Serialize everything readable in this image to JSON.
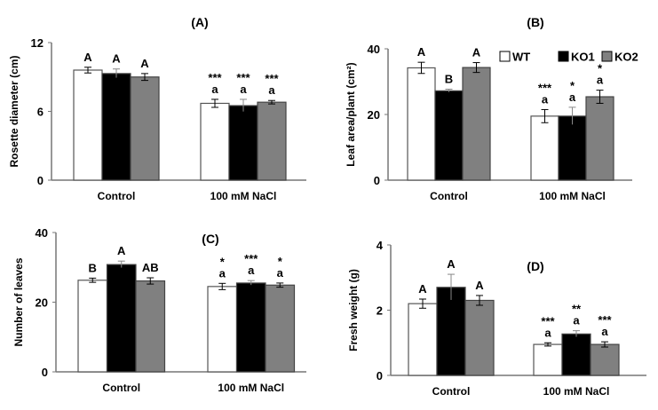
{
  "legend": [
    "WT",
    "KO1",
    "KO2"
  ],
  "series_colors": {
    "WT": "#ffffff",
    "KO1": "#000000",
    "KO2": "#808080"
  },
  "chart_data": [
    {
      "type": "bar",
      "title": "(A)",
      "ylabel": "Rosette diameter (cm)",
      "ylim": [
        0,
        12
      ],
      "yticks": [
        "0",
        "6",
        "12"
      ],
      "categories": [
        "Control",
        "100 mM NaCl"
      ],
      "series": [
        {
          "name": "WT",
          "values": [
            9.6,
            6.7
          ],
          "errors": [
            0.25,
            0.35
          ]
        },
        {
          "name": "KO1",
          "values": [
            9.3,
            6.5
          ],
          "errors": [
            0.4,
            0.55
          ]
        },
        {
          "name": "KO2",
          "values": [
            9.0,
            6.8
          ],
          "errors": [
            0.3,
            0.15
          ]
        }
      ],
      "letters": [
        [
          "A",
          "a"
        ],
        [
          "A",
          "a"
        ],
        [
          "A",
          "a"
        ]
      ],
      "stars": [
        [
          "",
          "***"
        ],
        [
          "",
          "***"
        ],
        [
          "",
          "***"
        ]
      ]
    },
    {
      "type": "bar",
      "title": "(B)",
      "ylabel": "Leaf area/plant (cm²)",
      "ylim": [
        0,
        40
      ],
      "yticks": [
        "0",
        "20",
        "40"
      ],
      "categories": [
        "Control",
        "100 mM NaCl"
      ],
      "series": [
        {
          "name": "WT",
          "values": [
            34.2,
            19.5
          ],
          "errors": [
            1.7,
            2.0
          ]
        },
        {
          "name": "KO1",
          "values": [
            27.2,
            19.5
          ],
          "errors": [
            0.5,
            2.7
          ]
        },
        {
          "name": "KO2",
          "values": [
            34.3,
            25.4
          ],
          "errors": [
            1.5,
            2.0
          ]
        }
      ],
      "letters": [
        [
          "A",
          "a"
        ],
        [
          "B",
          "a"
        ],
        [
          "A",
          "a"
        ]
      ],
      "stars": [
        [
          "",
          "***"
        ],
        [
          "",
          "*"
        ],
        [
          "",
          "*"
        ]
      ]
    },
    {
      "type": "bar",
      "title": "(C)",
      "ylabel": "Number of leaves",
      "ylim": [
        0,
        40
      ],
      "yticks": [
        "0",
        "20",
        "40"
      ],
      "categories": [
        "Control",
        "100 mM NaCl"
      ],
      "series": [
        {
          "name": "WT",
          "values": [
            26.3,
            24.5
          ],
          "errors": [
            0.6,
            0.9
          ]
        },
        {
          "name": "KO1",
          "values": [
            30.8,
            25.5
          ],
          "errors": [
            1.0,
            0.7
          ]
        },
        {
          "name": "KO2",
          "values": [
            26.1,
            24.9
          ],
          "errors": [
            0.9,
            0.6
          ]
        }
      ],
      "letters": [
        [
          "B",
          "a"
        ],
        [
          "A",
          "a"
        ],
        [
          "AB",
          "a"
        ]
      ],
      "stars": [
        [
          "",
          "*"
        ],
        [
          "",
          "***"
        ],
        [
          "",
          "*"
        ]
      ]
    },
    {
      "type": "bar",
      "title": "(D)",
      "ylabel": "Fresh weight (g)",
      "ylim": [
        0,
        4
      ],
      "yticks": [
        "0",
        "2",
        "4"
      ],
      "categories": [
        "Control",
        "100 mM NaCl"
      ],
      "series": [
        {
          "name": "WT",
          "values": [
            2.2,
            0.95
          ],
          "errors": [
            0.14,
            0.05
          ]
        },
        {
          "name": "KO1",
          "values": [
            2.7,
            1.27
          ],
          "errors": [
            0.4,
            0.1
          ]
        },
        {
          "name": "KO2",
          "values": [
            2.3,
            0.95
          ],
          "errors": [
            0.15,
            0.08
          ]
        }
      ],
      "letters": [
        [
          "A",
          "a"
        ],
        [
          "A",
          "a"
        ],
        [
          "A",
          "a"
        ]
      ],
      "stars": [
        [
          "",
          "***"
        ],
        [
          "",
          "**"
        ],
        [
          "",
          "***"
        ]
      ]
    }
  ]
}
